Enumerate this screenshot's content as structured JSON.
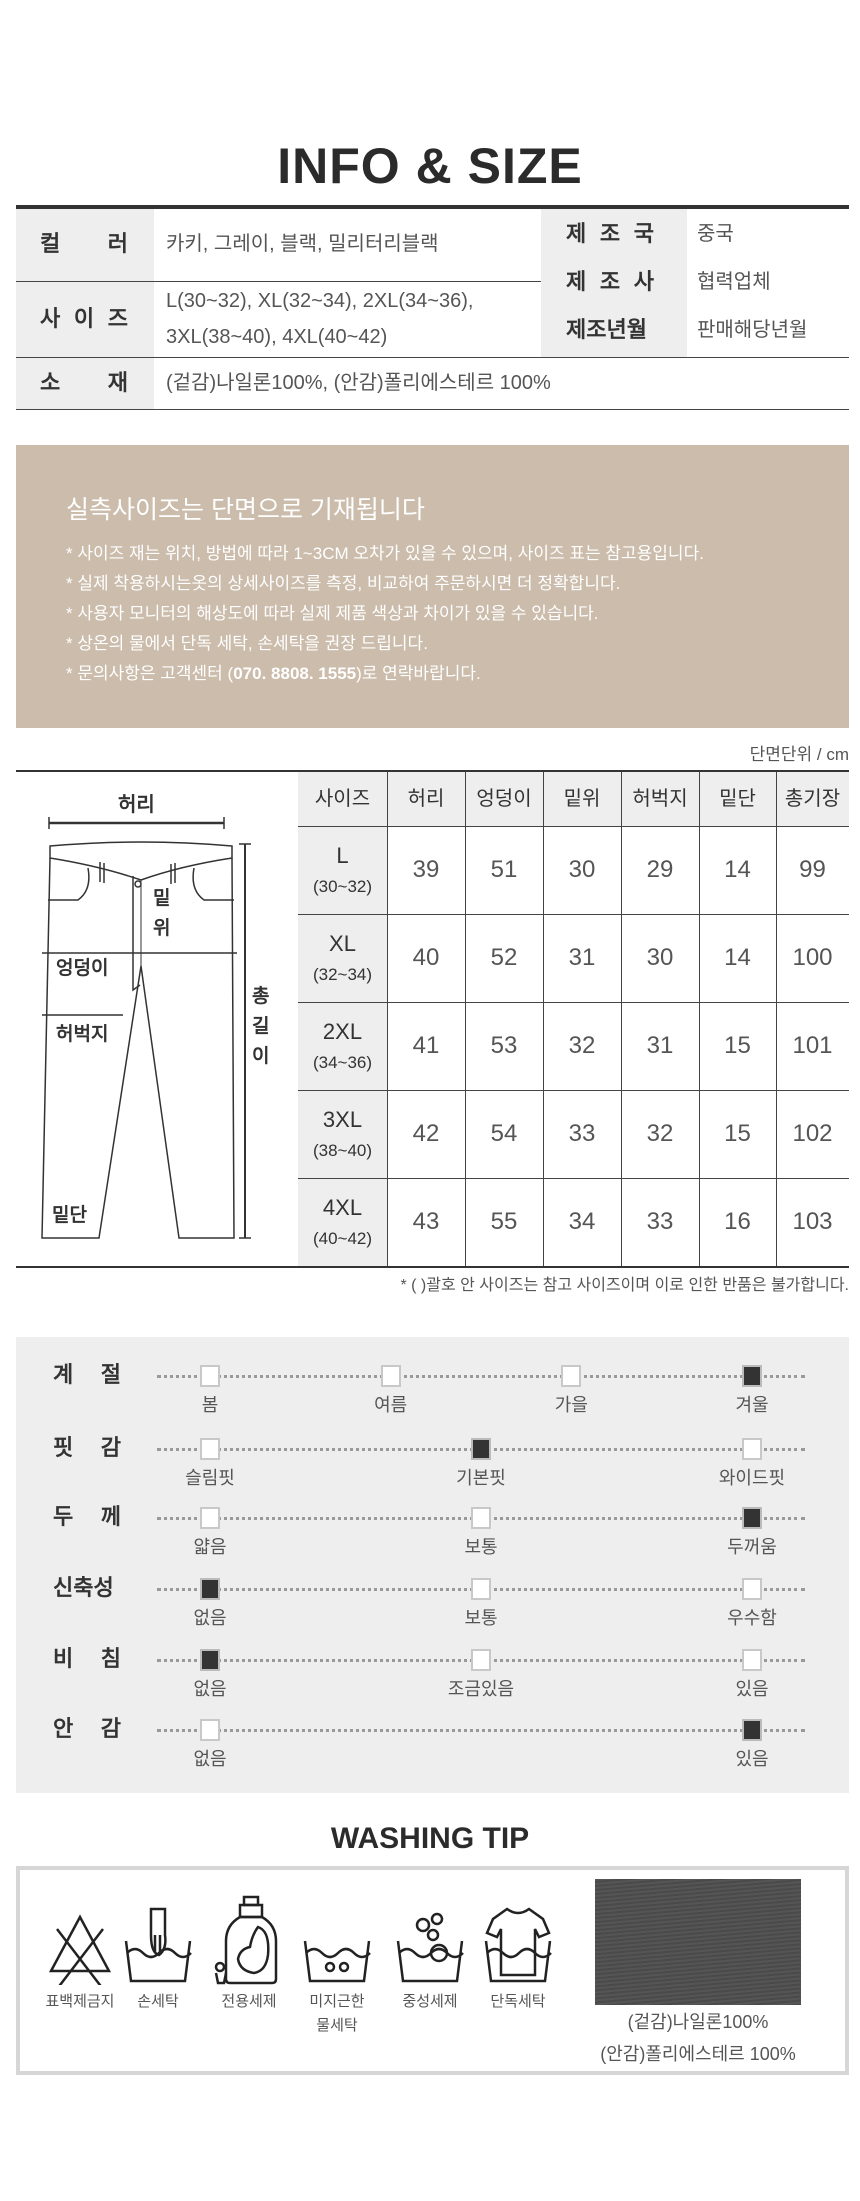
{
  "info": {
    "title": "INFO & SIZE",
    "color_label": "컬 러",
    "color_value": "카키, 그레이, 블랙, 밀리터리블랙",
    "size_label": "사 이 즈",
    "size_value_line1": "L(30~32), XL(32~34), 2XL(34~36),",
    "size_value_line2": "3XL(38~40), 4XL(40~42)",
    "material_label": "소 재",
    "material_value": "(겉감)나일론100%, (안감)폴리에스테르 100%",
    "country_label": "제 조 국",
    "country_value": "중국",
    "maker_label": "제 조 사",
    "maker_value": "협력업체",
    "date_label": "제조년월",
    "date_value": "판매해당년월"
  },
  "notice": {
    "heading": "실측사이즈는 단면으로 기재됩니다",
    "bullets": [
      "* 사이즈 재는 위치, 방법에 따라 1~3CM 오차가 있을 수 있으며, 사이즈 표는 참고용입니다.",
      "* 실제 착용하시는옷의 상세사이즈를 측정, 비교하여 주문하시면 더 정확합니다.",
      "* 사용자 모니터의 해상도에 따라 실제 제품 색상과 차이가 있을 수 있습니다.",
      "* 상온의 물에서 단독 세탁, 손세탁을 권장 드립니다."
    ],
    "contact_prefix": "* 문의사항은 고객센터 (",
    "contact_phone": "070. 8808. 1555",
    "contact_suffix": ")로 연락바랍니다."
  },
  "size_table": {
    "unit": "단면단위 / cm",
    "headers": [
      "사이즈",
      "허리",
      "엉덩이",
      "밑위",
      "허벅지",
      "밑단",
      "총기장"
    ],
    "rows": [
      {
        "size": "L",
        "range": "(30~32)",
        "values": [
          "39",
          "51",
          "30",
          "29",
          "14",
          "99"
        ]
      },
      {
        "size": "XL",
        "range": "(32~34)",
        "values": [
          "40",
          "52",
          "31",
          "30",
          "14",
          "100"
        ]
      },
      {
        "size": "2XL",
        "range": "(34~36)",
        "values": [
          "41",
          "53",
          "32",
          "31",
          "15",
          "101"
        ]
      },
      {
        "size": "3XL",
        "range": "(38~40)",
        "values": [
          "42",
          "54",
          "33",
          "32",
          "15",
          "102"
        ]
      },
      {
        "size": "4XL",
        "range": "(40~42)",
        "values": [
          "43",
          "55",
          "34",
          "33",
          "16",
          "103"
        ]
      }
    ],
    "footnote": "* (   )괄호 안 사이즈는 참고 사이즈이며 이로 인한 반품은 불가합니다.",
    "diagram": {
      "waist": "허리",
      "rise_1": "밑",
      "rise_2": "위",
      "hip": "엉덩이",
      "thigh": "허벅지",
      "hem": "밑단",
      "length_1": "총",
      "length_2": "길",
      "length_3": "이"
    }
  },
  "features": [
    {
      "label": "계 절",
      "options": [
        "봄",
        "여름",
        "가을",
        "겨울"
      ],
      "selected": [
        3
      ]
    },
    {
      "label": "핏 감",
      "options": [
        "슬림핏",
        "기본핏",
        "와이드핏"
      ],
      "selected": [
        1
      ]
    },
    {
      "label": "두 께",
      "options": [
        "얇음",
        "보통",
        "두꺼움"
      ],
      "selected": [
        2
      ]
    },
    {
      "label": "신축성",
      "options": [
        "없음",
        "보통",
        "우수함"
      ],
      "selected": [
        0
      ]
    },
    {
      "label": "비 침",
      "options": [
        "없음",
        "조금있음",
        "있음"
      ],
      "selected": [
        0
      ]
    },
    {
      "label": "안 감",
      "options": [
        "없음",
        "있음"
      ],
      "selected": [
        1
      ]
    }
  ],
  "washing": {
    "title": "WASHING TIP",
    "icons": [
      {
        "icon": "no-bleach-icon",
        "label": "표백제금지"
      },
      {
        "icon": "hand-wash-icon",
        "label": "손세탁"
      },
      {
        "icon": "detergent-bottle-icon",
        "label": "전용세제"
      },
      {
        "icon": "lukewarm-wash-icon",
        "label": "미지근한\n물세탁"
      },
      {
        "icon": "neutral-detergent-icon",
        "label": "중성세제"
      },
      {
        "icon": "wash-separately-icon",
        "label": "단독세탁"
      }
    ],
    "fabric_line1": "(겉감)나일론100%",
    "fabric_line2": "(안감)폴리에스테르 100%"
  },
  "colors": {
    "text": "#333333",
    "label_bg": "#eeeeee",
    "notice_bg": "#cbbcab",
    "check_on": "#333333"
  }
}
